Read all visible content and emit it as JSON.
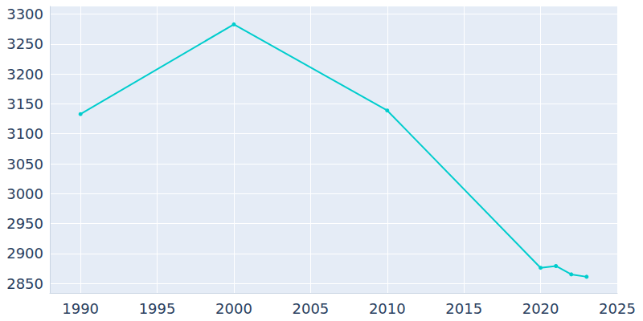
{
  "chart_data": {
    "type": "line",
    "x": [
      1990,
      2000,
      2010,
      2020,
      2021,
      2022,
      2023
    ],
    "values": [
      3133,
      3283,
      3139,
      2876,
      2879,
      2865,
      2861
    ],
    "color": "#00cdcd",
    "marker": "circle",
    "xlim": [
      1988,
      2025
    ],
    "xticks": [
      1990,
      1995,
      2000,
      2005,
      2010,
      2015,
      2020,
      2025
    ],
    "ylim": [
      2834,
      3313
    ],
    "yticks": [
      2850,
      2900,
      2950,
      3000,
      3050,
      3100,
      3150,
      3200,
      3250,
      3300
    ],
    "grid": true
  }
}
